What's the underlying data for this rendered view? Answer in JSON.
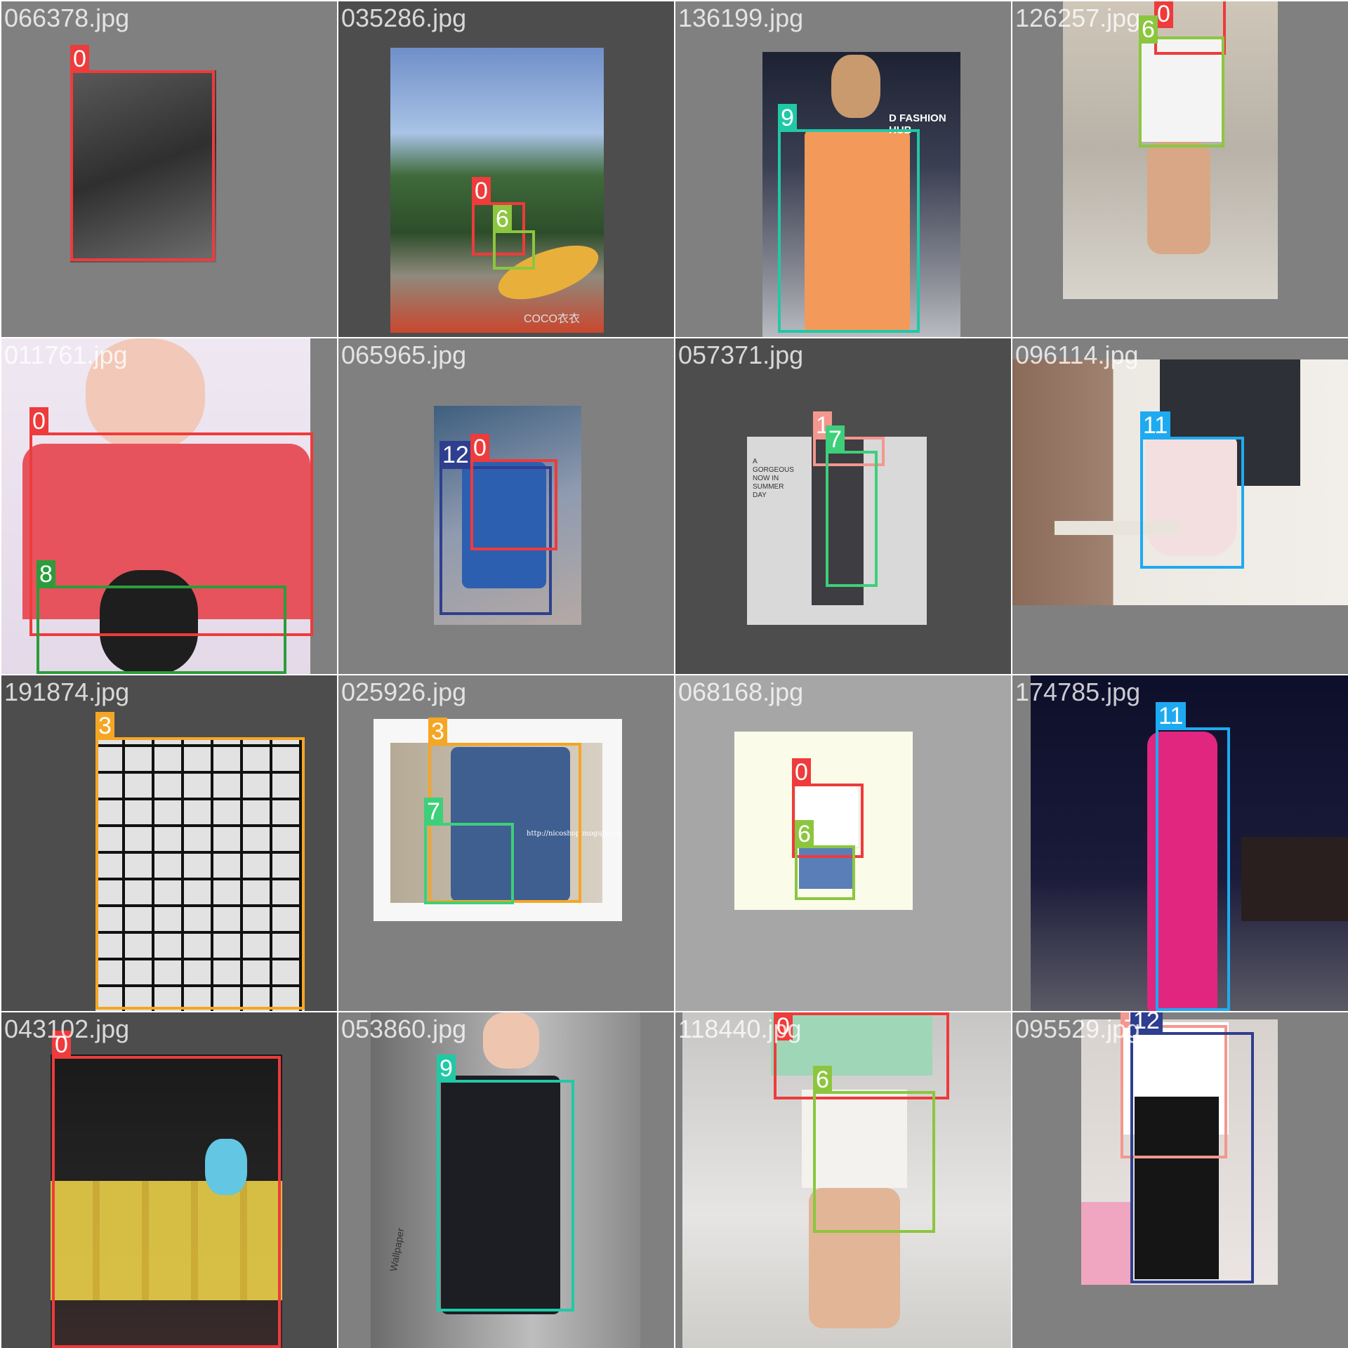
{
  "tiles": [
    {
      "file": "066378.jpg",
      "labels": [
        "0"
      ]
    },
    {
      "file": "035286.jpg",
      "labels": [
        "0",
        "6"
      ],
      "photo_text": "COCO衣衣"
    },
    {
      "file": "136199.jpg",
      "labels": [
        "9"
      ],
      "photo_text": "D FASHION HUB"
    },
    {
      "file": "126257.jpg",
      "labels": [
        "0",
        "6"
      ]
    },
    {
      "file": "011761.jpg",
      "labels": [
        "0",
        "8"
      ]
    },
    {
      "file": "065965.jpg",
      "labels": [
        "12",
        "0"
      ]
    },
    {
      "file": "057371.jpg",
      "labels": [
        "1",
        "7"
      ],
      "photo_text": "A GORGEOUS NOW IN SUMMER DAY"
    },
    {
      "file": "096114.jpg",
      "labels": [
        "11"
      ]
    },
    {
      "file": "191874.jpg",
      "labels": [
        "3"
      ]
    },
    {
      "file": "025926.jpg",
      "labels": [
        "3",
        "7"
      ],
      "photo_text": "http://nicoshop.mogujie.com"
    },
    {
      "file": "068168.jpg",
      "labels": [
        "0",
        "6"
      ]
    },
    {
      "file": "174785.jpg",
      "labels": [
        "11"
      ]
    },
    {
      "file": "043102.jpg",
      "labels": [
        "0"
      ]
    },
    {
      "file": "053860.jpg",
      "labels": [
        "9"
      ],
      "photo_text": "Wallpaper"
    },
    {
      "file": "118440.jpg",
      "labels": [
        "0",
        "6"
      ]
    },
    {
      "file": "095529.jpg",
      "labels": [
        "1",
        "12"
      ]
    }
  ],
  "class_colors": {
    "0": "#ee3b3b",
    "1": "#f4978e",
    "3": "#f5a623",
    "6": "#8cc63f",
    "7": "#3ecf7a",
    "8": "#2a9d3a",
    "9": "#20c9a6",
    "11": "#1eaaf1",
    "12": "#2e3f8f"
  }
}
